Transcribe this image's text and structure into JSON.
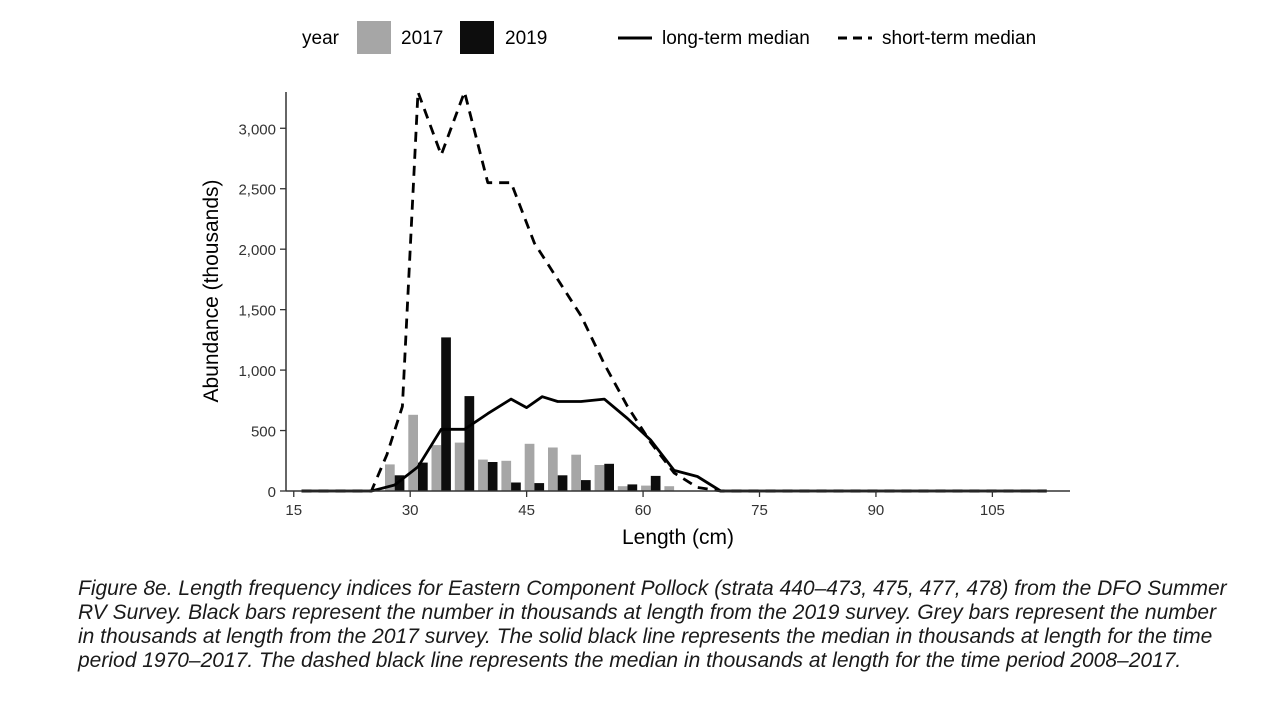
{
  "legend": {
    "title": "year",
    "items": [
      "2017",
      "2019"
    ],
    "lines": [
      "long-term median",
      "short-term median"
    ]
  },
  "caption": "Figure 8e. Length frequency indices for Eastern Component Pollock (strata 440–473, 475, 477, 478) from the DFO Summer RV Survey. Black bars represent the number in thousands at length from the 2019 survey. Grey bars represent the number in thousands at length from the 2017 survey. The solid black line represents the median in thousands at length for the time period 1970–2017. The dashed black line represents the median in thousands at length for the time period 2008–2017.",
  "chart_data": {
    "type": "bar",
    "xlabel": "Length (cm)",
    "ylabel": "Abundance (thousands)",
    "xlim": [
      14,
      115
    ],
    "ylim": [
      0,
      3300
    ],
    "xticks": [
      15,
      30,
      45,
      60,
      75,
      90,
      105
    ],
    "yticks": [
      0,
      500,
      1000,
      1500,
      2000,
      2500,
      3000
    ],
    "ytick_labels": [
      "0",
      "500",
      "1,000",
      "1,500",
      "2,000",
      "2,500",
      "3,000"
    ],
    "grid": false,
    "legend_position": "top",
    "colors": {
      "2017": "#a6a6a6",
      "2019": "#0d0d0d",
      "line": "#000000"
    },
    "categories": [
      28,
      31,
      34,
      37,
      40,
      43,
      46,
      49,
      52,
      55,
      58,
      61,
      64
    ],
    "series": [
      {
        "name": "2017",
        "values": [
          220,
          630,
          380,
          400,
          260,
          250,
          390,
          360,
          300,
          215,
          40,
          45,
          40
        ]
      },
      {
        "name": "2019",
        "values": [
          130,
          235,
          1270,
          785,
          240,
          70,
          65,
          130,
          90,
          225,
          55,
          125,
          0
        ]
      }
    ],
    "lines": [
      {
        "name": "long-term median",
        "style": "solid",
        "x": [
          16,
          25,
          28,
          31,
          34,
          37,
          40,
          43,
          45,
          47,
          49,
          52,
          55,
          58,
          61,
          64,
          67,
          70,
          75,
          90,
          105,
          112
        ],
        "y": [
          0,
          0,
          50,
          200,
          510,
          510,
          640,
          760,
          690,
          780,
          740,
          740,
          760,
          600,
          420,
          170,
          120,
          0,
          0,
          0,
          0,
          0
        ]
      },
      {
        "name": "short-term median",
        "style": "dashed",
        "x": [
          16,
          25,
          27,
          29,
          31,
          34,
          37,
          40,
          43,
          46,
          49,
          52,
          55,
          58,
          61,
          64,
          67,
          70,
          75,
          90,
          105,
          112
        ],
        "y": [
          0,
          0,
          300,
          700,
          3300,
          2780,
          3300,
          2550,
          2550,
          2050,
          1750,
          1450,
          1050,
          700,
          400,
          150,
          30,
          0,
          0,
          0,
          0,
          0
        ]
      }
    ]
  }
}
